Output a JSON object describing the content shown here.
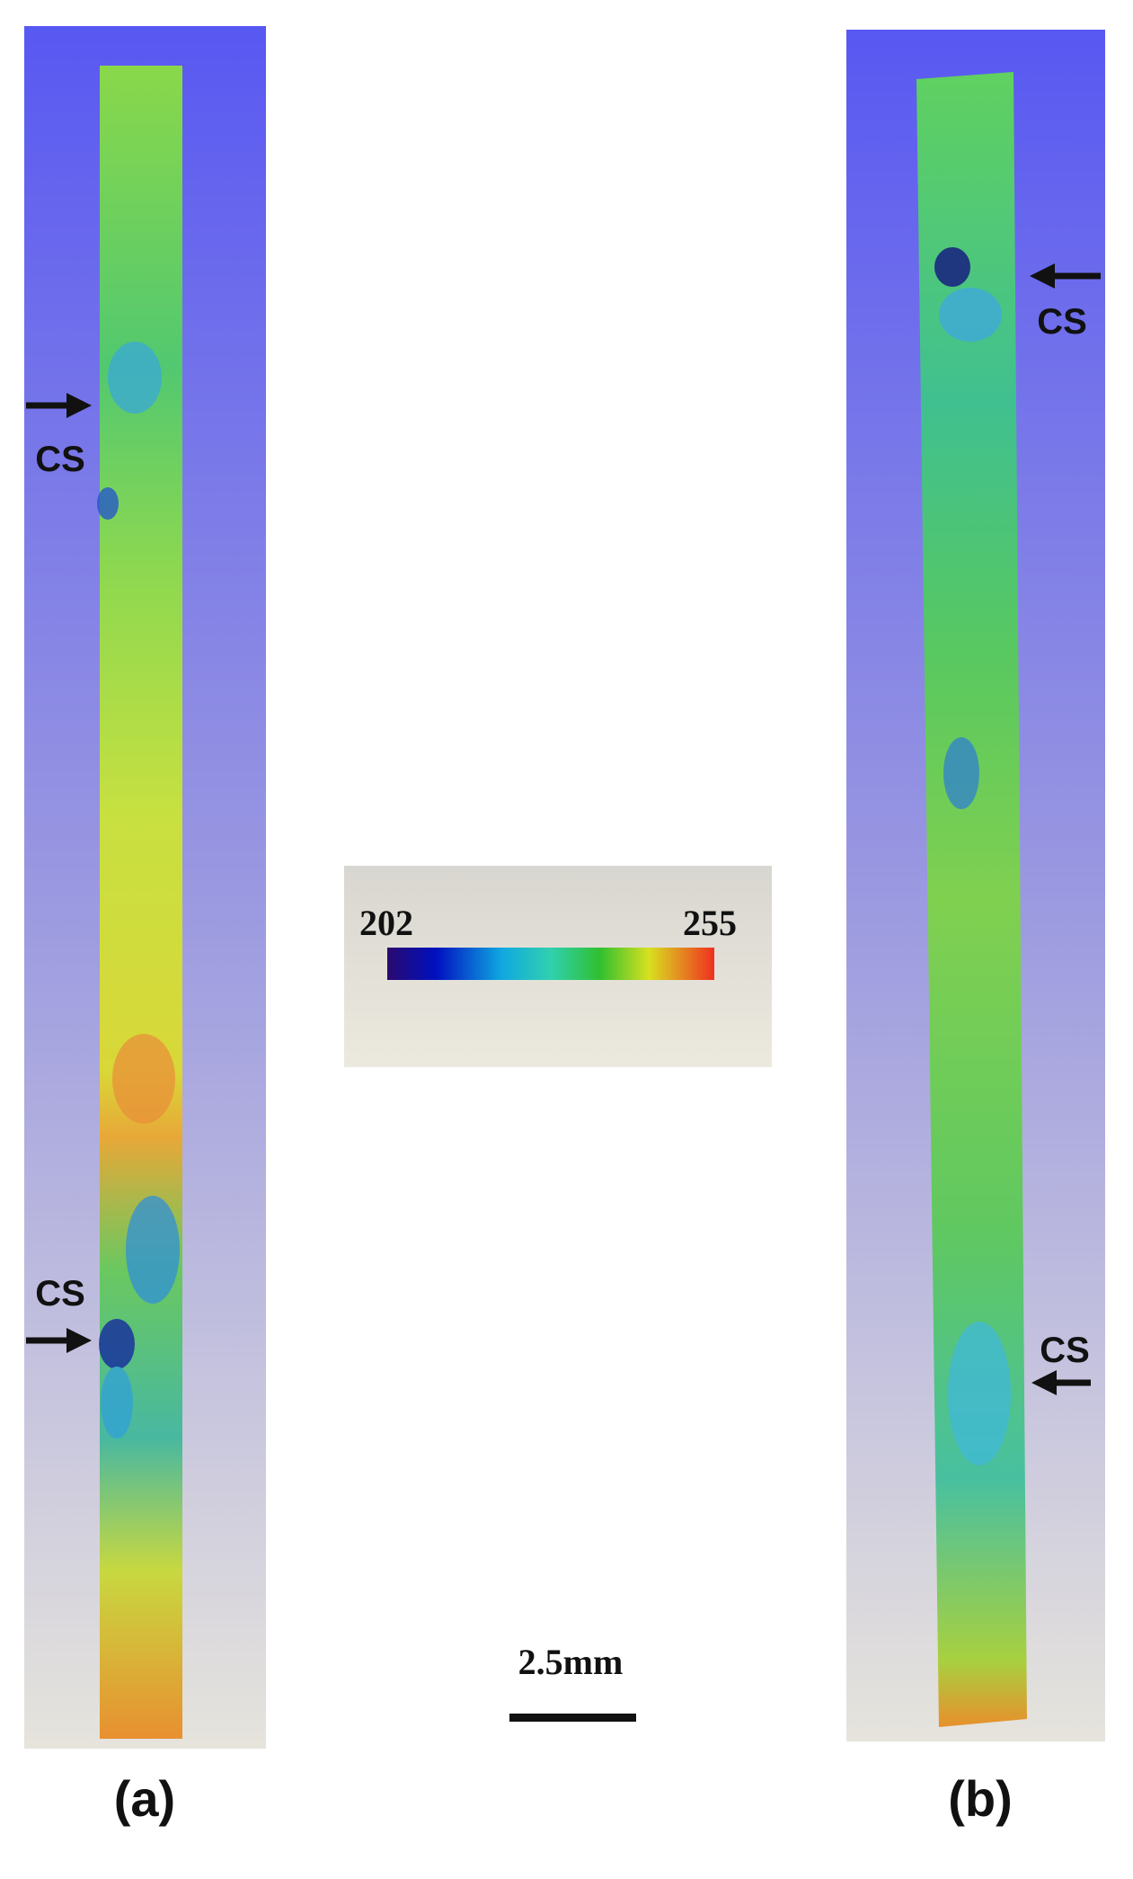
{
  "panels": [
    {
      "label": "(a)",
      "annotations": [
        "CS",
        "CS"
      ]
    },
    {
      "label": "(b)",
      "annotations": [
        "CS",
        "CS"
      ]
    }
  ],
  "colorbar": {
    "min": 202,
    "max": 255
  },
  "scale_bar": "2.5mm"
}
